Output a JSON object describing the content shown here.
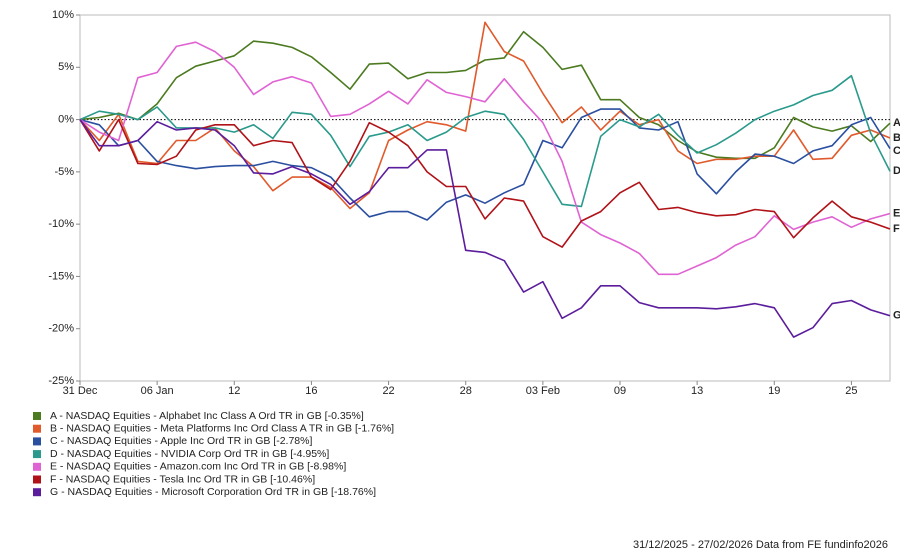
{
  "chart_data": {
    "type": "line",
    "categories": [
      "31 Dec",
      null,
      null,
      null,
      "06 Jan",
      null,
      null,
      null,
      "12",
      null,
      null,
      null,
      "16",
      null,
      null,
      null,
      "22",
      null,
      null,
      null,
      "28",
      null,
      null,
      null,
      "03 Feb",
      null,
      null,
      null,
      "09",
      null,
      null,
      null,
      "13",
      null,
      null,
      null,
      "19",
      null,
      null,
      null,
      "25",
      null,
      null
    ],
    "ylim": [
      -25,
      10
    ],
    "yticks": [
      {
        "value": -25,
        "label": "-25%"
      },
      {
        "value": -20,
        "label": "-20%"
      },
      {
        "value": -15,
        "label": "-15%"
      },
      {
        "value": -10,
        "label": "-10%"
      },
      {
        "value": -5,
        "label": "-5%"
      },
      {
        "value": 0,
        "label": "0%"
      },
      {
        "value": 5,
        "label": "5%"
      },
      {
        "value": 10,
        "label": "10%"
      }
    ],
    "reference_line": 0,
    "series": [
      {
        "name": "A - NASDAQ Equities - Alphabet Inc Class A Ord TR in GB [-0.35%]",
        "end_label": "A",
        "color": "#4b7a1f",
        "values": [
          0,
          0.2,
          0.6,
          0,
          1.5,
          4.0,
          5.1,
          5.6,
          6.1,
          7.5,
          7.3,
          6.9,
          6.0,
          4.5,
          2.9,
          5.3,
          5.4,
          3.9,
          4.5,
          4.5,
          4.7,
          5.7,
          5.9,
          8.4,
          6.9,
          4.8,
          5.2,
          1.9,
          1.9,
          0.2,
          -0.5,
          -2.0,
          -3.1,
          -3.6,
          -3.7,
          -3.7,
          -2.7,
          0.2,
          -0.7,
          -1.1,
          -0.6,
          -2.1,
          -0.35
        ]
      },
      {
        "name": "B - NASDAQ Equities - Meta Platforms Inc Ord Class A TR in GB [-1.76%]",
        "end_label": "B",
        "color": "#e05a2b",
        "values": [
          0,
          -2,
          0.5,
          -4,
          -4.2,
          -2,
          -2,
          -0.8,
          -3,
          -4.5,
          -6.8,
          -5.5,
          -5.5,
          -6.5,
          -8.5,
          -7,
          -2,
          -1,
          -0.2,
          -0.5,
          -1.1,
          9.3,
          6.5,
          5.6,
          2.5,
          -0.3,
          1.2,
          -1,
          0.8,
          -0.5,
          0,
          -3,
          -4.2,
          -3.8,
          -3.8,
          -3.5,
          -3.5,
          -1,
          -3.8,
          -3.7,
          -1.5,
          -1,
          -1.76
        ]
      },
      {
        "name": "C - NASDAQ Equities - Apple Inc Ord TR in GB [-2.78%]",
        "end_label": "C",
        "color": "#2a4fa0",
        "values": [
          0,
          -0.5,
          -2.5,
          -2,
          -4,
          -4.4,
          -4.7,
          -4.5,
          -4.4,
          -4.4,
          -4,
          -4.4,
          -4.6,
          -5.5,
          -7.5,
          -9.3,
          -8.8,
          -8.8,
          -9.6,
          -7.9,
          -7.2,
          -8,
          -7,
          -6.2,
          -2,
          -2.7,
          0.2,
          1,
          1,
          -0.8,
          -1,
          -0.2,
          -5.2,
          -7.1,
          -5,
          -3.3,
          -3.5,
          -4.2,
          -3,
          -2.5,
          -0.5,
          0.2,
          -2.78
        ]
      },
      {
        "name": "D - NASDAQ Equities - NVIDIA Corp Ord TR in GB [-4.95%]",
        "end_label": "D",
        "color": "#2a9a8c",
        "values": [
          0,
          0.8,
          0.5,
          0,
          1.2,
          -0.8,
          -0.8,
          -0.8,
          -1.2,
          -0.5,
          -1.8,
          0.7,
          0.5,
          -1.5,
          -4.5,
          -1.6,
          -1.2,
          -0.5,
          -2,
          -1.2,
          0.2,
          0.8,
          0.5,
          -1.9,
          -5,
          -8.1,
          -8.3,
          -1.6,
          0,
          -0.7,
          0.5,
          -1.5,
          -3.2,
          -2.4,
          -1.3,
          0,
          0.8,
          1.4,
          2.3,
          2.8,
          4.2,
          -1.3,
          -4.95
        ]
      },
      {
        "name": "E - NASDAQ Equities - Amazon.com Inc Ord TR in GB [-8.98%]",
        "end_label": "E",
        "color": "#e063d3",
        "values": [
          0,
          -1.2,
          -2,
          4,
          4.5,
          7,
          7.4,
          6.5,
          5,
          2.4,
          3.6,
          4.1,
          3.5,
          0.3,
          0.5,
          1.5,
          2.7,
          1.5,
          3.8,
          2.6,
          2.2,
          1.7,
          3.9,
          1.7,
          -0.3,
          -4,
          -9.8,
          -11,
          -11.8,
          -12.8,
          -14.8,
          -14.8,
          -14,
          -13.2,
          -12,
          -11.2,
          -9.2,
          -10.5,
          -9.8,
          -9.3,
          -10.3,
          -9.5,
          -8.98
        ]
      },
      {
        "name": "F - NASDAQ Equities - Tesla Inc Ord TR in GB [-10.46%]",
        "end_label": "F",
        "color": "#b01218",
        "values": [
          0,
          -3,
          0,
          -4.2,
          -4.3,
          -3.5,
          -1,
          -0.5,
          -0.5,
          -2.5,
          -2,
          -2.2,
          -5.5,
          -6.7,
          -4,
          -0.3,
          -1.2,
          -2.5,
          -5,
          -6.4,
          -6.4,
          -9.5,
          -7.5,
          -7.8,
          -11.2,
          -12.2,
          -9.7,
          -8.8,
          -7,
          -6,
          -8.6,
          -8.4,
          -8.9,
          -9.2,
          -9.1,
          -8.6,
          -8.8,
          -11.3,
          -9.4,
          -7.8,
          -9.3,
          -9.8,
          -10.46
        ]
      },
      {
        "name": "G - NASDAQ Equities - Microsoft Corporation Ord TR in GB [-18.76%]",
        "end_label": "G",
        "color": "#5b1d9c",
        "values": [
          0,
          -2.5,
          -2.5,
          -2,
          -0.2,
          -1,
          -0.8,
          -1,
          -2.5,
          -5.1,
          -5.2,
          -4.5,
          -5.2,
          -6.2,
          -8.1,
          -6.9,
          -4.6,
          -4.6,
          -2.9,
          -2.9,
          -12.5,
          -12.7,
          -13.5,
          -16.5,
          -15.5,
          -19,
          -18,
          -15.9,
          -15.9,
          -17.5,
          -18,
          -18,
          -18,
          -18.1,
          -17.9,
          -17.6,
          -18,
          -20.8,
          -19.9,
          -17.6,
          -17.3,
          -18.2,
          -18.76
        ]
      }
    ],
    "footer": "31/12/2025 - 27/02/2026 Data from FE fundinfo2026"
  }
}
